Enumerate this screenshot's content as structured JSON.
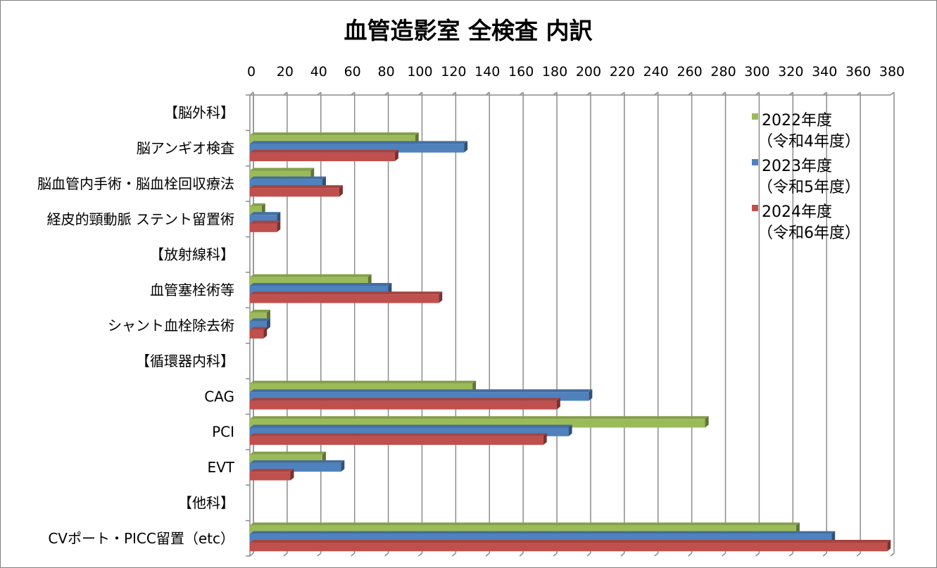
{
  "chart_data": {
    "type": "bar",
    "orientation": "horizontal",
    "title": "血管造影室 全検査 内訳",
    "xlabel": "",
    "ylabel": "",
    "xlim": [
      0,
      380
    ],
    "x_ticks": [
      0,
      20,
      40,
      60,
      80,
      100,
      120,
      140,
      160,
      180,
      200,
      220,
      240,
      260,
      280,
      300,
      320,
      340,
      360,
      380
    ],
    "x_axis_position": "top",
    "grid": true,
    "legend_position": "top-right",
    "categories": [
      "【脳外科】",
      "脳アンギオ検査",
      "脳血管内手術・脳血栓回収療法",
      "経皮的頸動脈 ステント留置術",
      "【放射線科】",
      "血管塞栓術等",
      "シャント血栓除去術",
      "【循環器内科】",
      "CAG",
      "PCI",
      "EVT",
      "【他科】",
      "CVポート・PICC留置（etc）"
    ],
    "series": [
      {
        "name": "2022年度",
        "name_sub": "（令和4年度）",
        "color": "#9BBB59",
        "values": [
          0,
          98,
          36,
          7,
          0,
          70,
          10,
          0,
          132,
          270,
          43,
          0,
          324
        ]
      },
      {
        "name": "2023年度",
        "name_sub": "（令和5年度）",
        "color": "#4F81BD",
        "values": [
          0,
          127,
          43,
          16,
          0,
          82,
          10,
          0,
          201,
          189,
          54,
          0,
          345
        ]
      },
      {
        "name": "2024年度",
        "name_sub": "（令和6年度）",
        "color": "#C0504D",
        "values": [
          0,
          86,
          53,
          16,
          0,
          112,
          8,
          0,
          182,
          174,
          24,
          0,
          378
        ]
      }
    ]
  }
}
